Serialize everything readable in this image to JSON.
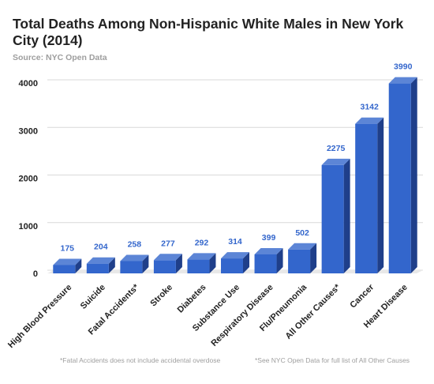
{
  "title": "Total Deaths Among Non-Hispanic White Males in New York City (2014)",
  "subtitle": "Source: NYC Open Data",
  "notes": {
    "left": "*Fatal Accidents does not include accidental overdose",
    "right": "*See NYC Open Data for full list of All Other Causes"
  },
  "colors": {
    "bar_front": "#3366cc",
    "bar_side": "#1f3f8a",
    "bar_top": "#5c85d6",
    "data_label": "#3366cc",
    "grid": "#d9d9d9"
  },
  "chart_data": {
    "type": "bar",
    "categories": [
      "High Blood Pressure",
      "Suicide",
      "Fatal Accidents*",
      "Stroke",
      "Diabetes",
      "Substance Use",
      "Respiratory Disease",
      "Flu/Pneumonia",
      "All Other Causes*",
      "Cancer",
      "Heart Disease"
    ],
    "values": [
      175,
      204,
      258,
      277,
      292,
      314,
      399,
      502,
      2275,
      3142,
      3990
    ],
    "data_labels": [
      "175",
      "204",
      "258",
      "277",
      "292",
      "314",
      "399",
      "502",
      "2275",
      "3142",
      "3990"
    ],
    "yticks": [
      0,
      1000,
      2000,
      3000,
      4000
    ],
    "ytick_labels": [
      "0",
      "1000",
      "2000",
      "3000",
      "4000"
    ],
    "ylim": [
      0,
      4000
    ],
    "grid": true,
    "three_d": true,
    "legend": "none"
  }
}
